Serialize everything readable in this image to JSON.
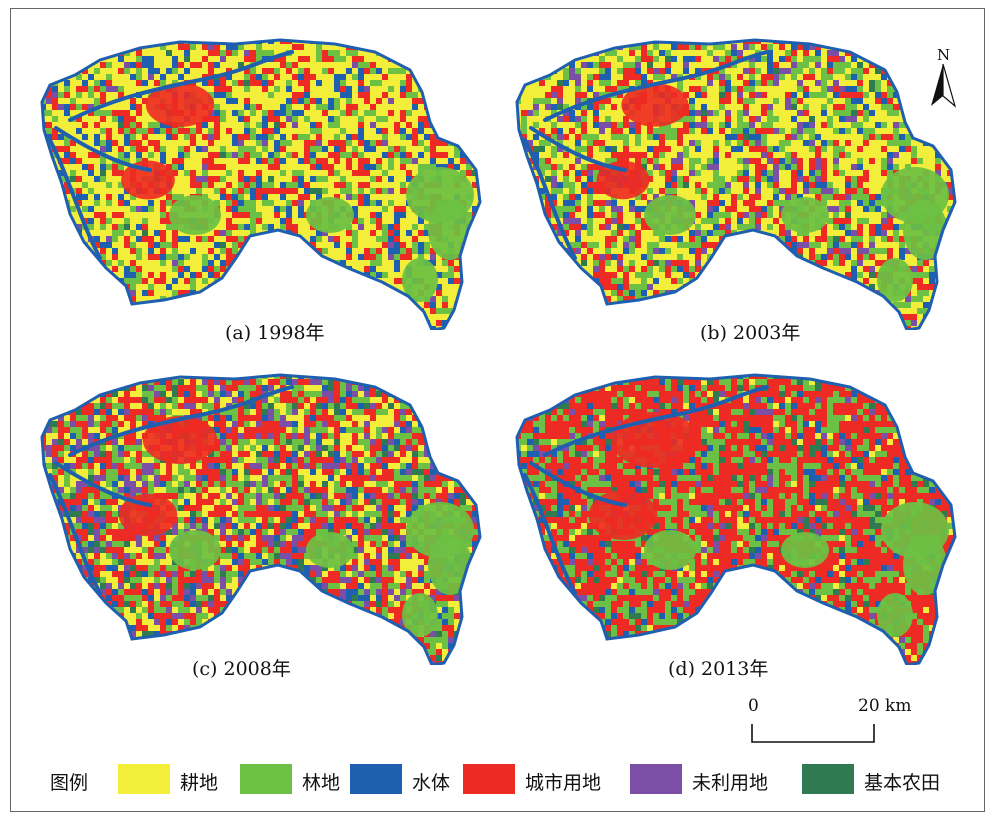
{
  "panels": [
    {
      "caption": "(a) 1998年",
      "dominant": "cultivated",
      "mix": {
        "cultivated": 0.45,
        "forest": 0.18,
        "water": 0.12,
        "urban": 0.22,
        "unused": 0.02,
        "basic_farmland": 0.01
      }
    },
    {
      "caption": "(b) 2003年",
      "dominant": "cultivated",
      "mix": {
        "cultivated": 0.4,
        "forest": 0.22,
        "water": 0.08,
        "urban": 0.2,
        "unused": 0.08,
        "basic_farmland": 0.02
      }
    },
    {
      "caption": "(c) 2008年",
      "dominant": "urban",
      "mix": {
        "cultivated": 0.2,
        "forest": 0.22,
        "water": 0.07,
        "urban": 0.33,
        "unused": 0.12,
        "basic_farmland": 0.06
      }
    },
    {
      "caption": "(d) 2013年",
      "dominant": "urban",
      "mix": {
        "cultivated": 0.04,
        "forest": 0.24,
        "water": 0.06,
        "urban": 0.56,
        "unused": 0.04,
        "basic_farmland": 0.06
      }
    }
  ],
  "north_arrow": {
    "label": "N"
  },
  "scale_bar": {
    "start_label": "0",
    "end_label": "20 km"
  },
  "legend": {
    "title": "图例",
    "items": [
      {
        "key": "cultivated",
        "label": "耕地",
        "color": "#f2ee3a"
      },
      {
        "key": "forest",
        "label": "林地",
        "color": "#6cc043"
      },
      {
        "key": "water",
        "label": "水体",
        "color": "#1f5fb0"
      },
      {
        "key": "urban",
        "label": "城市用地",
        "color": "#ee2a24"
      },
      {
        "key": "unused",
        "label": "未利用地",
        "color": "#7b4fa6"
      },
      {
        "key": "basic_farmland",
        "label": "基本农田",
        "color": "#2f7a50"
      }
    ]
  }
}
